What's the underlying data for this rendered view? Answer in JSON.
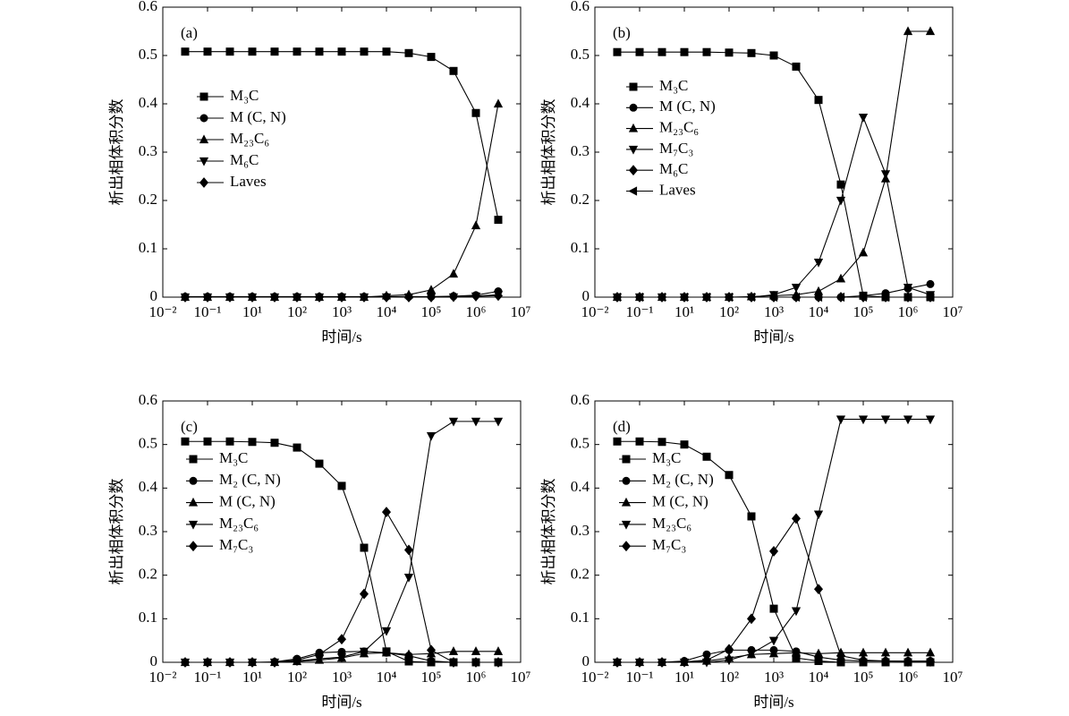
{
  "chart_data": [
    {
      "type": "line",
      "annotation": "(a)",
      "xlabel": "时间/s",
      "ylabel": "析出相体积分数",
      "xscale": "log",
      "legend": "left",
      "x": [
        0.0316,
        0.1,
        1,
        10,
        31.6,
        100,
        316,
        1000,
        3160,
        10000,
        31600,
        100000,
        316000,
        1000000,
        3160000
      ],
      "xlim": [
        0.01,
        10000000
      ],
      "xticks": [
        {
          "value": 0.01,
          "label": "10⁻²"
        },
        {
          "value": 0.1,
          "label": "10⁻¹"
        },
        {
          "value": 10,
          "label": "10¹"
        },
        {
          "value": 100,
          "label": "10²"
        },
        {
          "value": 1000,
          "label": "10³"
        },
        {
          "value": 10000,
          "label": "10⁴"
        },
        {
          "value": 100000,
          "label": "10⁵"
        },
        {
          "value": 1000000,
          "label": "10⁶"
        },
        {
          "value": 10000000,
          "label": "10⁷"
        }
      ],
      "ylim": [
        0,
        0.6
      ],
      "yticks": [
        0,
        0.1,
        0.2,
        0.3,
        0.4,
        0.5,
        0.6
      ],
      "series": [
        {
          "name": "M₃C",
          "color": "#000000",
          "marker": "square",
          "values": [
            0.508,
            0.508,
            0.508,
            0.508,
            0.508,
            0.508,
            0.508,
            0.508,
            0.508,
            0.508,
            0.505,
            0.497,
            0.468,
            0.381,
            0.16
          ]
        },
        {
          "name": "M (C, N)",
          "color": "#000000",
          "marker": "circle",
          "values": [
            0.001,
            0.001,
            0.001,
            0.001,
            0.001,
            0.001,
            0.001,
            0.001,
            0.001,
            0.001,
            0.001,
            0.001,
            0.002,
            0.004,
            0.012
          ]
        },
        {
          "name": "M₂₃C₆",
          "color": "#000000",
          "marker": "triangle-up",
          "values": [
            0,
            0,
            0,
            0,
            0,
            0,
            0,
            0,
            0,
            0.003,
            0.005,
            0.015,
            0.048,
            0.148,
            0.4
          ]
        },
        {
          "name": "M₆C",
          "color": "#000000",
          "marker": "triangle-down",
          "values": [
            0,
            0,
            0,
            0,
            0,
            0,
            0,
            0,
            0,
            0,
            0,
            0,
            0,
            0.002,
            0.005
          ]
        },
        {
          "name": "Laves",
          "color": "#000000",
          "marker": "diamond",
          "values": [
            0,
            0,
            0,
            0,
            0,
            0,
            0,
            0,
            0,
            0,
            0,
            0,
            0.001,
            0.002,
            0.003
          ]
        }
      ]
    },
    {
      "type": "line",
      "annotation": "(b)",
      "xlabel": "时间/s",
      "ylabel": "析出相体积分数",
      "xscale": "log",
      "legend": "left",
      "x": [
        0.0316,
        0.1,
        1,
        10,
        31.6,
        100,
        316,
        1000,
        3160,
        10000,
        31600,
        100000,
        316000,
        1000000,
        3160000
      ],
      "xlim": [
        0.01,
        10000000
      ],
      "xticks": [
        {
          "value": 0.01,
          "label": "10⁻²"
        },
        {
          "value": 0.1,
          "label": "10⁻¹"
        },
        {
          "value": 10,
          "label": "10¹"
        },
        {
          "value": 100,
          "label": "10²"
        },
        {
          "value": 1000,
          "label": "10³"
        },
        {
          "value": 10000,
          "label": "10⁴"
        },
        {
          "value": 100000,
          "label": "10⁵"
        },
        {
          "value": 1000000,
          "label": "10⁶"
        },
        {
          "value": 10000000,
          "label": "10⁷"
        }
      ],
      "ylim": [
        0,
        0.6
      ],
      "yticks": [
        0,
        0.1,
        0.2,
        0.3,
        0.4,
        0.5,
        0.6
      ],
      "series": [
        {
          "name": "M₃C",
          "color": "#000000",
          "marker": "square",
          "values": [
            0.507,
            0.507,
            0.507,
            0.507,
            0.507,
            0.506,
            0.505,
            0.5,
            0.477,
            0.408,
            0.233,
            0.003,
            0,
            0,
            0
          ]
        },
        {
          "name": "M (C, N)",
          "color": "#000000",
          "marker": "circle",
          "values": [
            0,
            0,
            0,
            0,
            0,
            0,
            0,
            0,
            0,
            0,
            0,
            0.003,
            0.008,
            0.018,
            0.027
          ]
        },
        {
          "name": "M₂₃C₆",
          "color": "#000000",
          "marker": "triangle-up",
          "values": [
            0,
            0,
            0,
            0,
            0,
            0,
            0.001,
            0.003,
            0.005,
            0.012,
            0.038,
            0.092,
            0.245,
            0.55,
            0.55
          ]
        },
        {
          "name": "M₇C₃",
          "color": "#000000",
          "marker": "triangle-down",
          "values": [
            0,
            0,
            0,
            0,
            0,
            0,
            0,
            0.005,
            0.02,
            0.072,
            0.2,
            0.372,
            0.255,
            0.02,
            0.005
          ]
        },
        {
          "name": "M₆C",
          "color": "#000000",
          "marker": "diamond",
          "values": [
            0,
            0,
            0,
            0,
            0,
            0,
            0,
            0,
            0,
            0,
            0,
            0,
            0,
            0,
            0
          ]
        },
        {
          "name": "Laves",
          "color": "#000000",
          "marker": "triangle-left",
          "values": [
            0,
            0,
            0,
            0,
            0,
            0,
            0,
            0,
            0,
            0,
            0,
            0,
            0,
            0,
            0
          ]
        }
      ]
    },
    {
      "type": "line",
      "annotation": "(c)",
      "xlabel": "时间/s",
      "ylabel": "析出相体积分数",
      "xscale": "log",
      "legend": "left",
      "x": [
        0.0316,
        0.1,
        1,
        10,
        31.6,
        100,
        316,
        1000,
        3160,
        10000,
        31600,
        100000,
        316000,
        1000000,
        3160000
      ],
      "xlim": [
        0.01,
        10000000
      ],
      "xticks": [
        {
          "value": 0.01,
          "label": "10⁻²"
        },
        {
          "value": 0.1,
          "label": "10⁻¹"
        },
        {
          "value": 10,
          "label": "10¹"
        },
        {
          "value": 100,
          "label": "10²"
        },
        {
          "value": 1000,
          "label": "10³"
        },
        {
          "value": 10000,
          "label": "10⁴"
        },
        {
          "value": 100000,
          "label": "10⁵"
        },
        {
          "value": 1000000,
          "label": "10⁶"
        },
        {
          "value": 10000000,
          "label": "10⁷"
        }
      ],
      "ylim": [
        0,
        0.6
      ],
      "yticks": [
        0,
        0.1,
        0.2,
        0.3,
        0.4,
        0.5,
        0.6
      ],
      "series": [
        {
          "name": "M₃C",
          "color": "#000000",
          "marker": "square",
          "values": [
            0.507,
            0.507,
            0.507,
            0.506,
            0.504,
            0.493,
            0.456,
            0.405,
            0.263,
            0.025,
            0.002,
            0,
            0,
            0,
            0
          ]
        },
        {
          "name": "M₂ (C, N)",
          "color": "#000000",
          "marker": "circle",
          "values": [
            0,
            0,
            0,
            0,
            0.001,
            0.008,
            0.022,
            0.024,
            0.025,
            0.022,
            0.015,
            0.003,
            0,
            0,
            0
          ]
        },
        {
          "name": "M (C, N)",
          "color": "#000000",
          "marker": "triangle-up",
          "values": [
            0,
            0,
            0,
            0,
            0,
            0.002,
            0.005,
            0.01,
            0.02,
            0.022,
            0.018,
            0.02,
            0.025,
            0.025,
            0.025
          ]
        },
        {
          "name": "M₂₃C₆",
          "color": "#000000",
          "marker": "triangle-down",
          "values": [
            0,
            0,
            0,
            0,
            0,
            0.003,
            0.008,
            0.012,
            0.025,
            0.072,
            0.195,
            0.52,
            0.553,
            0.553,
            0.553
          ]
        },
        {
          "name": "M₇C₃",
          "color": "#000000",
          "marker": "diamond",
          "values": [
            0,
            0,
            0,
            0,
            0,
            0.005,
            0.018,
            0.053,
            0.157,
            0.345,
            0.258,
            0.028,
            0,
            0,
            0
          ]
        }
      ]
    },
    {
      "type": "line",
      "annotation": "(d)",
      "xlabel": "时间/s",
      "ylabel": "析出相体积分数",
      "xscale": "log",
      "legend": "left",
      "x": [
        0.0316,
        0.1,
        1,
        10,
        31.6,
        100,
        316,
        1000,
        3160,
        10000,
        31600,
        100000,
        316000,
        1000000,
        3160000
      ],
      "xlim": [
        0.01,
        10000000
      ],
      "xticks": [
        {
          "value": 0.01,
          "label": "10⁻²"
        },
        {
          "value": 0.1,
          "label": "10⁻¹"
        },
        {
          "value": 10,
          "label": "10¹"
        },
        {
          "value": 100,
          "label": "10²"
        },
        {
          "value": 1000,
          "label": "10³"
        },
        {
          "value": 10000,
          "label": "10⁴"
        },
        {
          "value": 100000,
          "label": "10⁵"
        },
        {
          "value": 1000000,
          "label": "10⁶"
        },
        {
          "value": 10000000,
          "label": "10⁷"
        }
      ],
      "ylim": [
        0,
        0.6
      ],
      "yticks": [
        0,
        0.1,
        0.2,
        0.3,
        0.4,
        0.5,
        0.6
      ],
      "series": [
        {
          "name": "M₃C",
          "color": "#000000",
          "marker": "square",
          "values": [
            0.507,
            0.507,
            0.506,
            0.5,
            0.472,
            0.43,
            0.335,
            0.123,
            0.01,
            0.003,
            0,
            0,
            0,
            0,
            0
          ]
        },
        {
          "name": "M₂ (C, N)",
          "color": "#000000",
          "marker": "circle",
          "values": [
            0,
            0,
            0,
            0.003,
            0.018,
            0.028,
            0.028,
            0.028,
            0.025,
            0.012,
            0.005,
            0.003,
            0.003,
            0.003,
            0.003
          ]
        },
        {
          "name": "M (C, N)",
          "color": "#000000",
          "marker": "triangle-up",
          "values": [
            0,
            0,
            0,
            0,
            0.003,
            0.01,
            0.018,
            0.02,
            0.022,
            0.02,
            0.022,
            0.022,
            0.022,
            0.022,
            0.022
          ]
        },
        {
          "name": "M₂₃C₆",
          "color": "#000000",
          "marker": "triangle-down",
          "values": [
            0,
            0,
            0,
            0,
            0,
            0.005,
            0.02,
            0.05,
            0.118,
            0.34,
            0.558,
            0.558,
            0.558,
            0.558,
            0.558
          ]
        },
        {
          "name": "M₇C₃",
          "color": "#000000",
          "marker": "diamond",
          "values": [
            0,
            0,
            0,
            0.001,
            0.005,
            0.03,
            0.1,
            0.255,
            0.33,
            0.168,
            0.015,
            0.005,
            0.003,
            0.002,
            0.002
          ]
        }
      ]
    }
  ]
}
